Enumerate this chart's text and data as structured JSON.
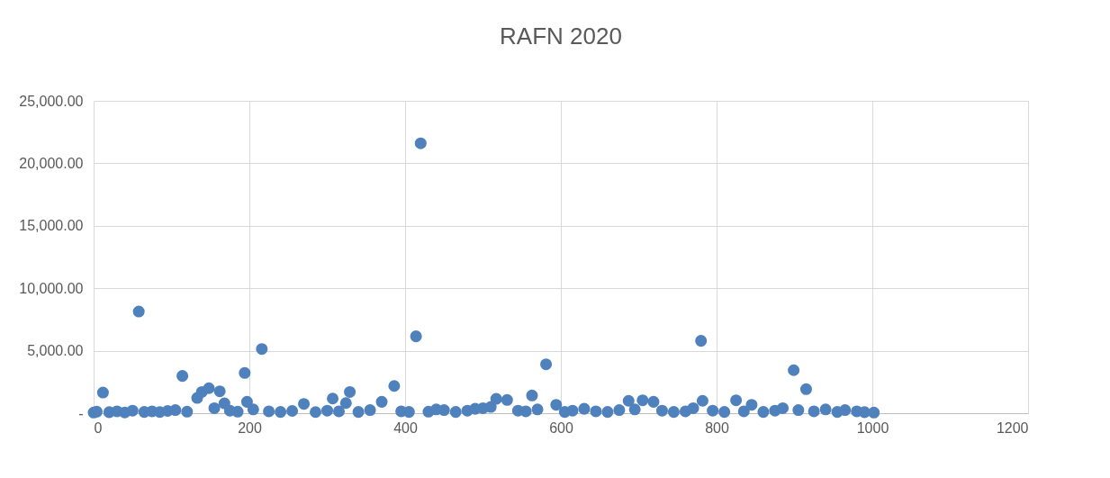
{
  "chart_data": {
    "type": "scatter",
    "title": "RAFN 2020",
    "x": [
      0,
      4,
      12,
      20,
      30,
      40,
      50,
      58,
      65,
      75,
      85,
      95,
      105,
      114,
      120,
      133,
      139,
      148,
      155,
      162,
      168,
      175,
      185,
      194,
      197,
      205,
      216,
      225,
      240,
      255,
      270,
      285,
      300,
      307,
      315,
      324,
      329,
      340,
      355,
      370,
      386,
      395,
      405,
      414,
      420,
      430,
      440,
      450,
      465,
      480,
      490,
      500,
      510,
      517,
      531,
      545,
      555,
      563,
      570,
      581,
      594,
      605,
      615,
      630,
      645,
      660,
      675,
      687,
      695,
      705,
      719,
      730,
      745,
      760,
      770,
      780,
      782,
      795,
      810,
      825,
      835,
      845,
      860,
      875,
      885,
      899,
      905,
      915,
      925,
      940,
      955,
      965,
      980,
      990,
      1002
    ],
    "series": [
      {
        "color": "#4f81bd",
        "values": [
          50,
          120,
          1650,
          80,
          150,
          60,
          200,
          8140,
          100,
          150,
          90,
          180,
          250,
          2980,
          120,
          1220,
          1700,
          2000,
          400,
          1750,
          790,
          200,
          120,
          3220,
          910,
          300,
          5140,
          150,
          100,
          180,
          740,
          90,
          200,
          1170,
          150,
          810,
          1700,
          100,
          250,
          910,
          2180,
          150,
          100,
          6150,
          21600,
          120,
          300,
          250,
          100,
          200,
          350,
          400,
          500,
          1150,
          1060,
          200,
          150,
          1420,
          300,
          3910,
          670,
          100,
          200,
          350,
          150,
          100,
          250,
          990,
          300,
          1030,
          910,
          200,
          100,
          150,
          400,
          5790,
          990,
          200,
          100,
          1030,
          150,
          670,
          100,
          200,
          400,
          3440,
          250,
          1920,
          150,
          300,
          100,
          250,
          150,
          80,
          50
        ]
      }
    ],
    "xlim": [
      0,
      1200
    ],
    "xticks": [
      0,
      200,
      400,
      600,
      800,
      1000,
      1200
    ],
    "ylim": [
      0,
      25000
    ],
    "yticks": [
      {
        "value": 0,
        "label": "-"
      },
      {
        "value": 5000,
        "label": "5,000.00"
      },
      {
        "value": 10000,
        "label": "10,000.00"
      },
      {
        "value": 15000,
        "label": "15,000.00"
      },
      {
        "value": 20000,
        "label": "20,000.00"
      },
      {
        "value": 25000,
        "label": "25,000.00"
      }
    ],
    "grid": true,
    "marker": "circle",
    "legend": false
  }
}
